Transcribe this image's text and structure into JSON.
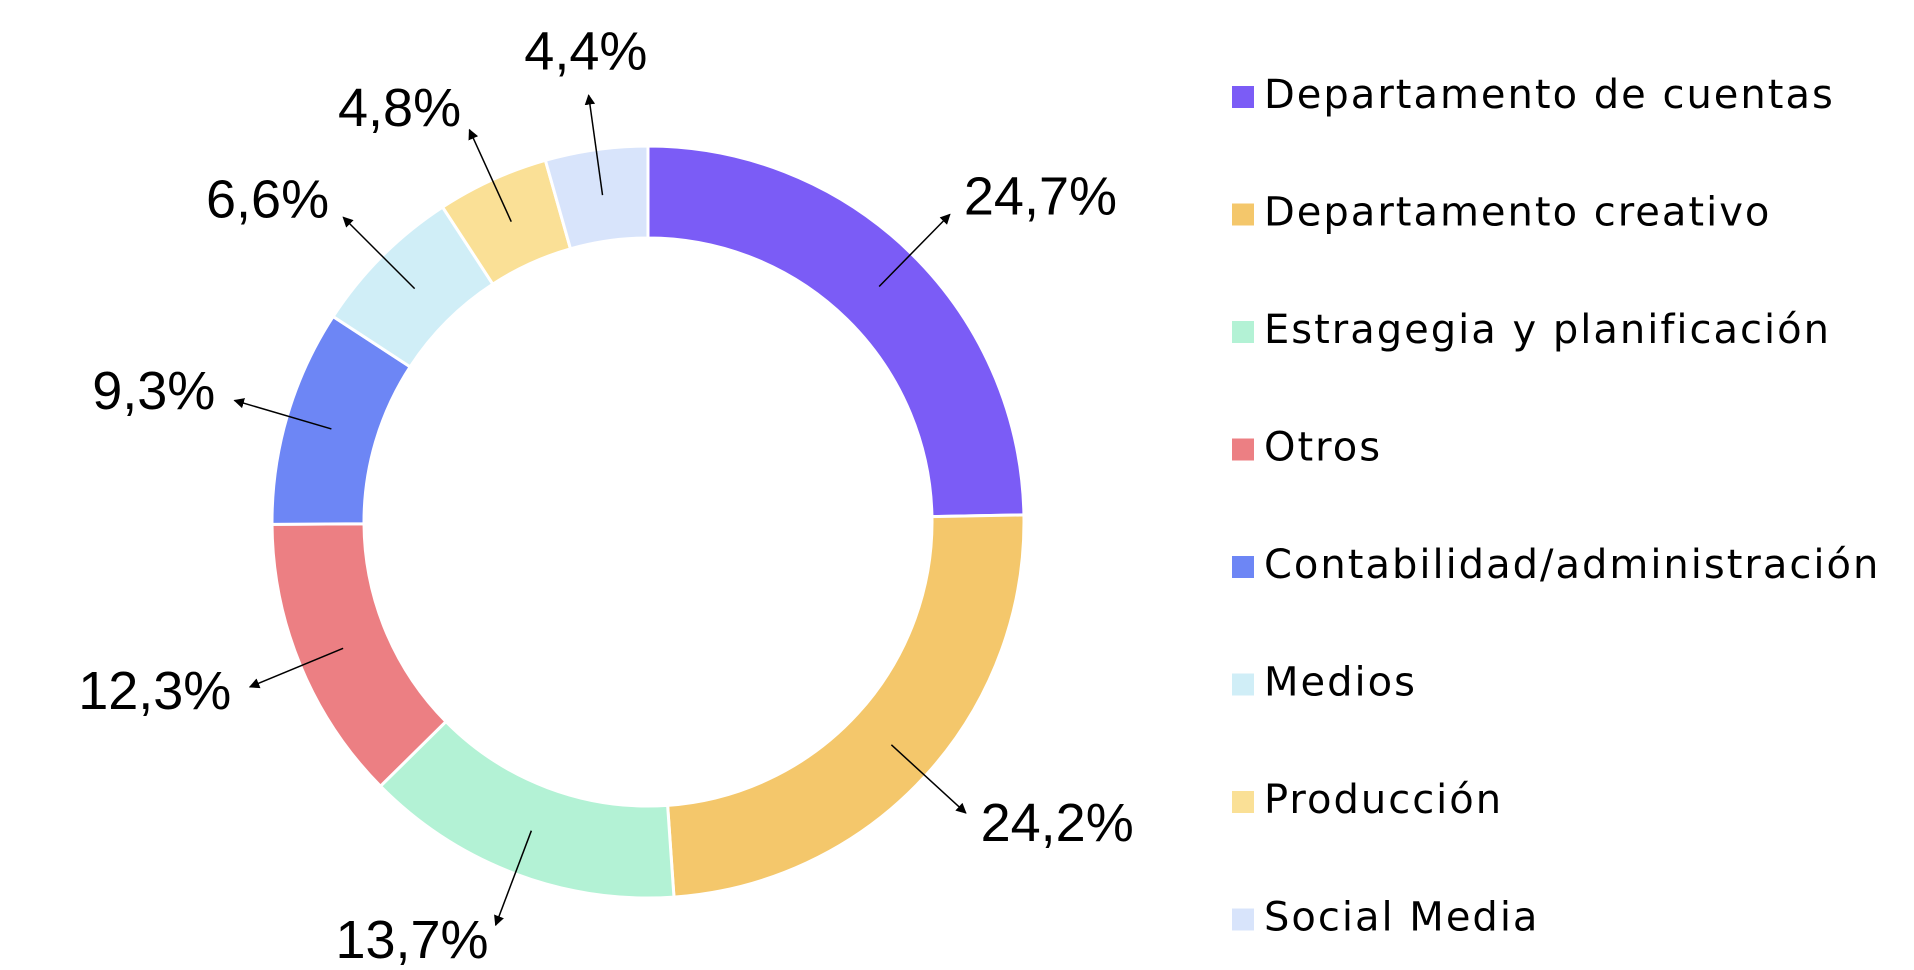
{
  "chart_data": {
    "type": "pie",
    "categories": [
      "Departamento de cuentas",
      "Departamento creativo",
      "Estragegia y planificación",
      "Otros",
      "Contabilidad/administración",
      "Medios",
      "Producción",
      "Social Media"
    ],
    "values": [
      24.7,
      24.2,
      13.7,
      12.3,
      9.3,
      6.6,
      4.8,
      4.4
    ],
    "value_labels": [
      "24,7%",
      "24,2%",
      "13,7%",
      "12,3%",
      "9,3%",
      "6,6%",
      "4,8%",
      "4,4%"
    ],
    "colors": [
      "#7b5cf6",
      "#f4c76b",
      "#b3f2d5",
      "#ec7f83",
      "#6d86f5",
      "#d0eef7",
      "#fae096",
      "#d8e4fb"
    ]
  }
}
